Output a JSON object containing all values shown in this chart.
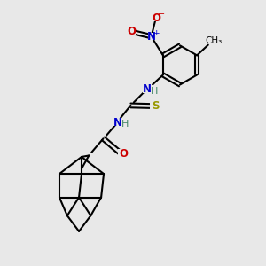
{
  "bg_color": "#e8e8e8",
  "bond_color": "#000000",
  "bond_width": 1.5,
  "figsize": [
    3.0,
    3.0
  ],
  "dpi": 100,
  "atom_colors": {
    "N": "#0000cc",
    "O": "#cc0000",
    "S": "#999900",
    "C": "#000000",
    "H": "#448866"
  }
}
